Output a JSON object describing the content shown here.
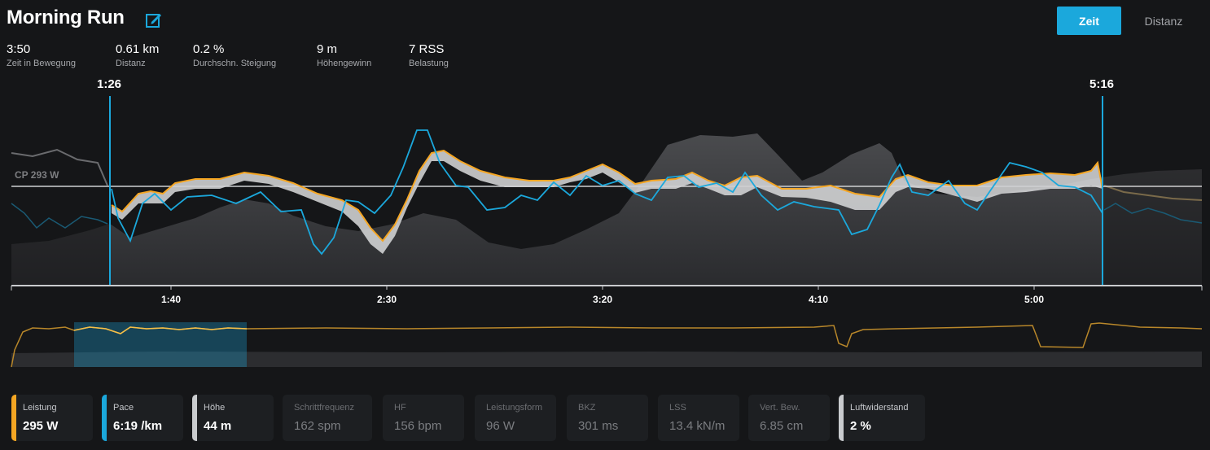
{
  "header": {
    "title": "Morning Run",
    "toggles": [
      {
        "label": "Zeit",
        "active": true
      },
      {
        "label": "Distanz",
        "active": false
      }
    ]
  },
  "stats": [
    {
      "value": "3:50",
      "label": "Zeit in Bewegung"
    },
    {
      "value": "0.61 km",
      "label": "Distanz"
    },
    {
      "value": "0.2 %",
      "label": "Durchschn. Steigung"
    },
    {
      "value": "9 m",
      "label": "Höhengewinn"
    },
    {
      "value": "7 RSS",
      "label": "Belastung"
    }
  ],
  "chart": {
    "selection_start": "1:26",
    "selection_end": "5:16",
    "reference_line_label": "CP 293 W",
    "x_ticks": [
      "1:40",
      "2:30",
      "3:20",
      "4:10",
      "5:00"
    ],
    "colors": {
      "power": "#f5a623",
      "pace": "#1ba8dc",
      "elevation": "#3a3b3e",
      "selection": "#1ba8dc"
    }
  },
  "metrics": [
    {
      "label": "Leistung",
      "value": "295 W",
      "color": "#f5a623",
      "active": true
    },
    {
      "label": "Pace",
      "value": "6:19 /km",
      "color": "#1ba8dc",
      "active": true
    },
    {
      "label": "Höhe",
      "value": "44 m",
      "color": "#c9cbce",
      "active": true
    },
    {
      "label": "Schrittfrequenz",
      "value": "162 spm",
      "color": "",
      "active": false
    },
    {
      "label": "HF",
      "value": "156 bpm",
      "color": "",
      "active": false
    },
    {
      "label": "Leistungsform",
      "value": "96 W",
      "color": "",
      "active": false
    },
    {
      "label": "BKZ",
      "value": "301 ms",
      "color": "",
      "active": false
    },
    {
      "label": "LSS",
      "value": "13.4 kN/m",
      "color": "",
      "active": false
    },
    {
      "label": "Vert. Bew.",
      "value": "6.85 cm",
      "color": "",
      "active": false
    },
    {
      "label": "Luftwiderstand",
      "value": "2 %",
      "color": "#c9cbce",
      "active": true
    }
  ]
}
